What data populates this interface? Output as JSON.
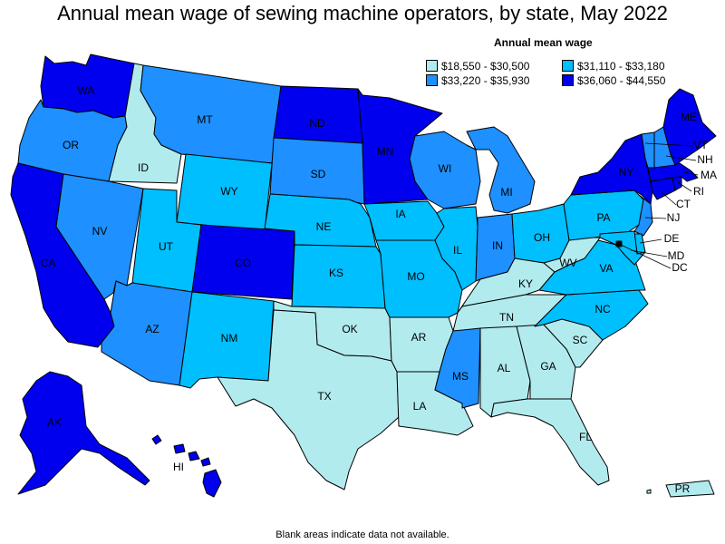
{
  "title": "Annual mean wage of sewing machine operators, by state, May 2022",
  "legend": {
    "title": "Annual mean wage",
    "items": [
      {
        "label": "$18,550 - $30,500",
        "color": "#b2ebee"
      },
      {
        "label": "$31,110 - $33,180",
        "color": "#00bfff"
      },
      {
        "label": "$33,220 - $35,930",
        "color": "#1e90ff"
      },
      {
        "label": "$36,060 - $44,550",
        "color": "#0000ee"
      }
    ]
  },
  "footnote": "Blank areas indicate data not available.",
  "states": {
    "WA": {
      "label": "WA",
      "class": 3
    },
    "OR": {
      "label": "OR",
      "class": 2
    },
    "CA": {
      "label": "CA",
      "class": 3
    },
    "ID": {
      "label": "ID",
      "class": 0
    },
    "NV": {
      "label": "NV",
      "class": 2
    },
    "MT": {
      "label": "MT",
      "class": 2
    },
    "WY": {
      "label": "WY",
      "class": 1
    },
    "UT": {
      "label": "UT",
      "class": 1
    },
    "AZ": {
      "label": "AZ",
      "class": 2
    },
    "CO": {
      "label": "CO",
      "class": 3
    },
    "NM": {
      "label": "NM",
      "class": 1
    },
    "ND": {
      "label": "ND",
      "class": 3
    },
    "SD": {
      "label": "SD",
      "class": 2
    },
    "NE": {
      "label": "NE",
      "class": 1
    },
    "KS": {
      "label": "KS",
      "class": 1
    },
    "OK": {
      "label": "OK",
      "class": 0
    },
    "TX": {
      "label": "TX",
      "class": 0
    },
    "MN": {
      "label": "MN",
      "class": 3
    },
    "IA": {
      "label": "IA",
      "class": 1
    },
    "MO": {
      "label": "MO",
      "class": 1
    },
    "AR": {
      "label": "AR",
      "class": 0
    },
    "LA": {
      "label": "LA",
      "class": 0
    },
    "WI": {
      "label": "WI",
      "class": 2
    },
    "IL": {
      "label": "IL",
      "class": 1
    },
    "MI": {
      "label": "MI",
      "class": 2
    },
    "IN": {
      "label": "IN",
      "class": 2
    },
    "OH": {
      "label": "OH",
      "class": 1
    },
    "KY": {
      "label": "KY",
      "class": 0
    },
    "TN": {
      "label": "TN",
      "class": 0
    },
    "MS": {
      "label": "MS",
      "class": 2
    },
    "AL": {
      "label": "AL",
      "class": 0
    },
    "GA": {
      "label": "GA",
      "class": 0
    },
    "FL": {
      "label": "FL",
      "class": 0
    },
    "SC": {
      "label": "SC",
      "class": 0
    },
    "NC": {
      "label": "NC",
      "class": 1
    },
    "VA": {
      "label": "VA",
      "class": 1
    },
    "WV": {
      "label": "WV",
      "class": 0
    },
    "PA": {
      "label": "PA",
      "class": 1
    },
    "NY": {
      "label": "NY",
      "class": 3
    },
    "NJ": {
      "label": "NJ",
      "class": 2
    },
    "DE": {
      "label": "DE",
      "class": 1
    },
    "MD": {
      "label": "MD",
      "class": 1
    },
    "DC": {
      "label": "DC",
      "class": 1
    },
    "CT": {
      "label": "CT",
      "class": 3
    },
    "RI": {
      "label": "RI",
      "class": 3
    },
    "MA": {
      "label": "MA",
      "class": 3
    },
    "VT": {
      "label": "VT",
      "class": 2
    },
    "NH": {
      "label": "NH",
      "class": 2
    },
    "ME": {
      "label": "ME",
      "class": 3
    },
    "AK": {
      "label": "AK",
      "class": 3
    },
    "HI": {
      "label": "HI",
      "class": 3
    },
    "PR": {
      "label": "PR",
      "class": 0
    }
  }
}
